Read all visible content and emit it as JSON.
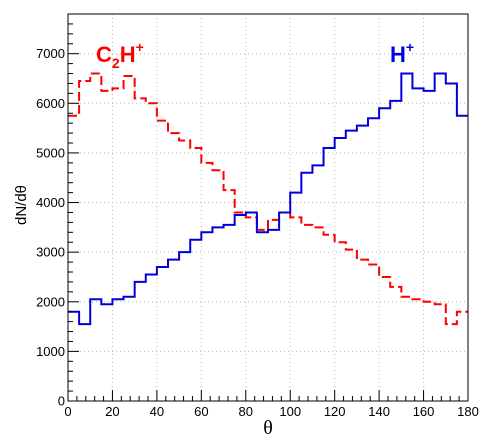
{
  "chart_data": {
    "type": "line",
    "step": true,
    "xlabel": "θ",
    "ylabel": "dN/dθ",
    "xlim": [
      0,
      180
    ],
    "ylim": [
      0,
      7800
    ],
    "xticks": [
      0,
      20,
      40,
      60,
      80,
      100,
      120,
      140,
      160,
      180
    ],
    "yticks": [
      0,
      1000,
      2000,
      3000,
      4000,
      5000,
      6000,
      7000
    ],
    "grid": true,
    "bin_edges": [
      0,
      5,
      10,
      15,
      20,
      25,
      30,
      35,
      40,
      45,
      50,
      55,
      60,
      65,
      70,
      75,
      80,
      85,
      90,
      95,
      100,
      105,
      110,
      115,
      120,
      125,
      130,
      135,
      140,
      145,
      150,
      155,
      160,
      165,
      170,
      175,
      180
    ],
    "series": [
      {
        "name": "C2H+",
        "label_main": "C",
        "label_sub": "2",
        "label_tail": "H",
        "label_sup": "+",
        "color": "#ff0000",
        "dash": true,
        "values": [
          5750,
          6450,
          6600,
          6250,
          6300,
          6550,
          6100,
          6000,
          5650,
          5400,
          5250,
          5100,
          4800,
          4650,
          4250,
          3800,
          3700,
          3450,
          3650,
          3800,
          3700,
          3550,
          3500,
          3350,
          3200,
          3050,
          2850,
          2750,
          2500,
          2300,
          2100,
          2050,
          2000,
          1950,
          1550,
          1800
        ]
      },
      {
        "name": "H+",
        "label_main": "H",
        "label_sub": "",
        "label_tail": "",
        "label_sup": "+",
        "color": "#0000dd",
        "dash": false,
        "values": [
          1800,
          1550,
          2050,
          1950,
          2050,
          2100,
          2400,
          2550,
          2700,
          2850,
          3000,
          3250,
          3400,
          3500,
          3550,
          3750,
          3800,
          3400,
          3450,
          3800,
          4200,
          4600,
          4750,
          5100,
          5300,
          5450,
          5550,
          5700,
          5900,
          6050,
          6600,
          6300,
          6250,
          6600,
          6400,
          5750
        ]
      }
    ]
  }
}
